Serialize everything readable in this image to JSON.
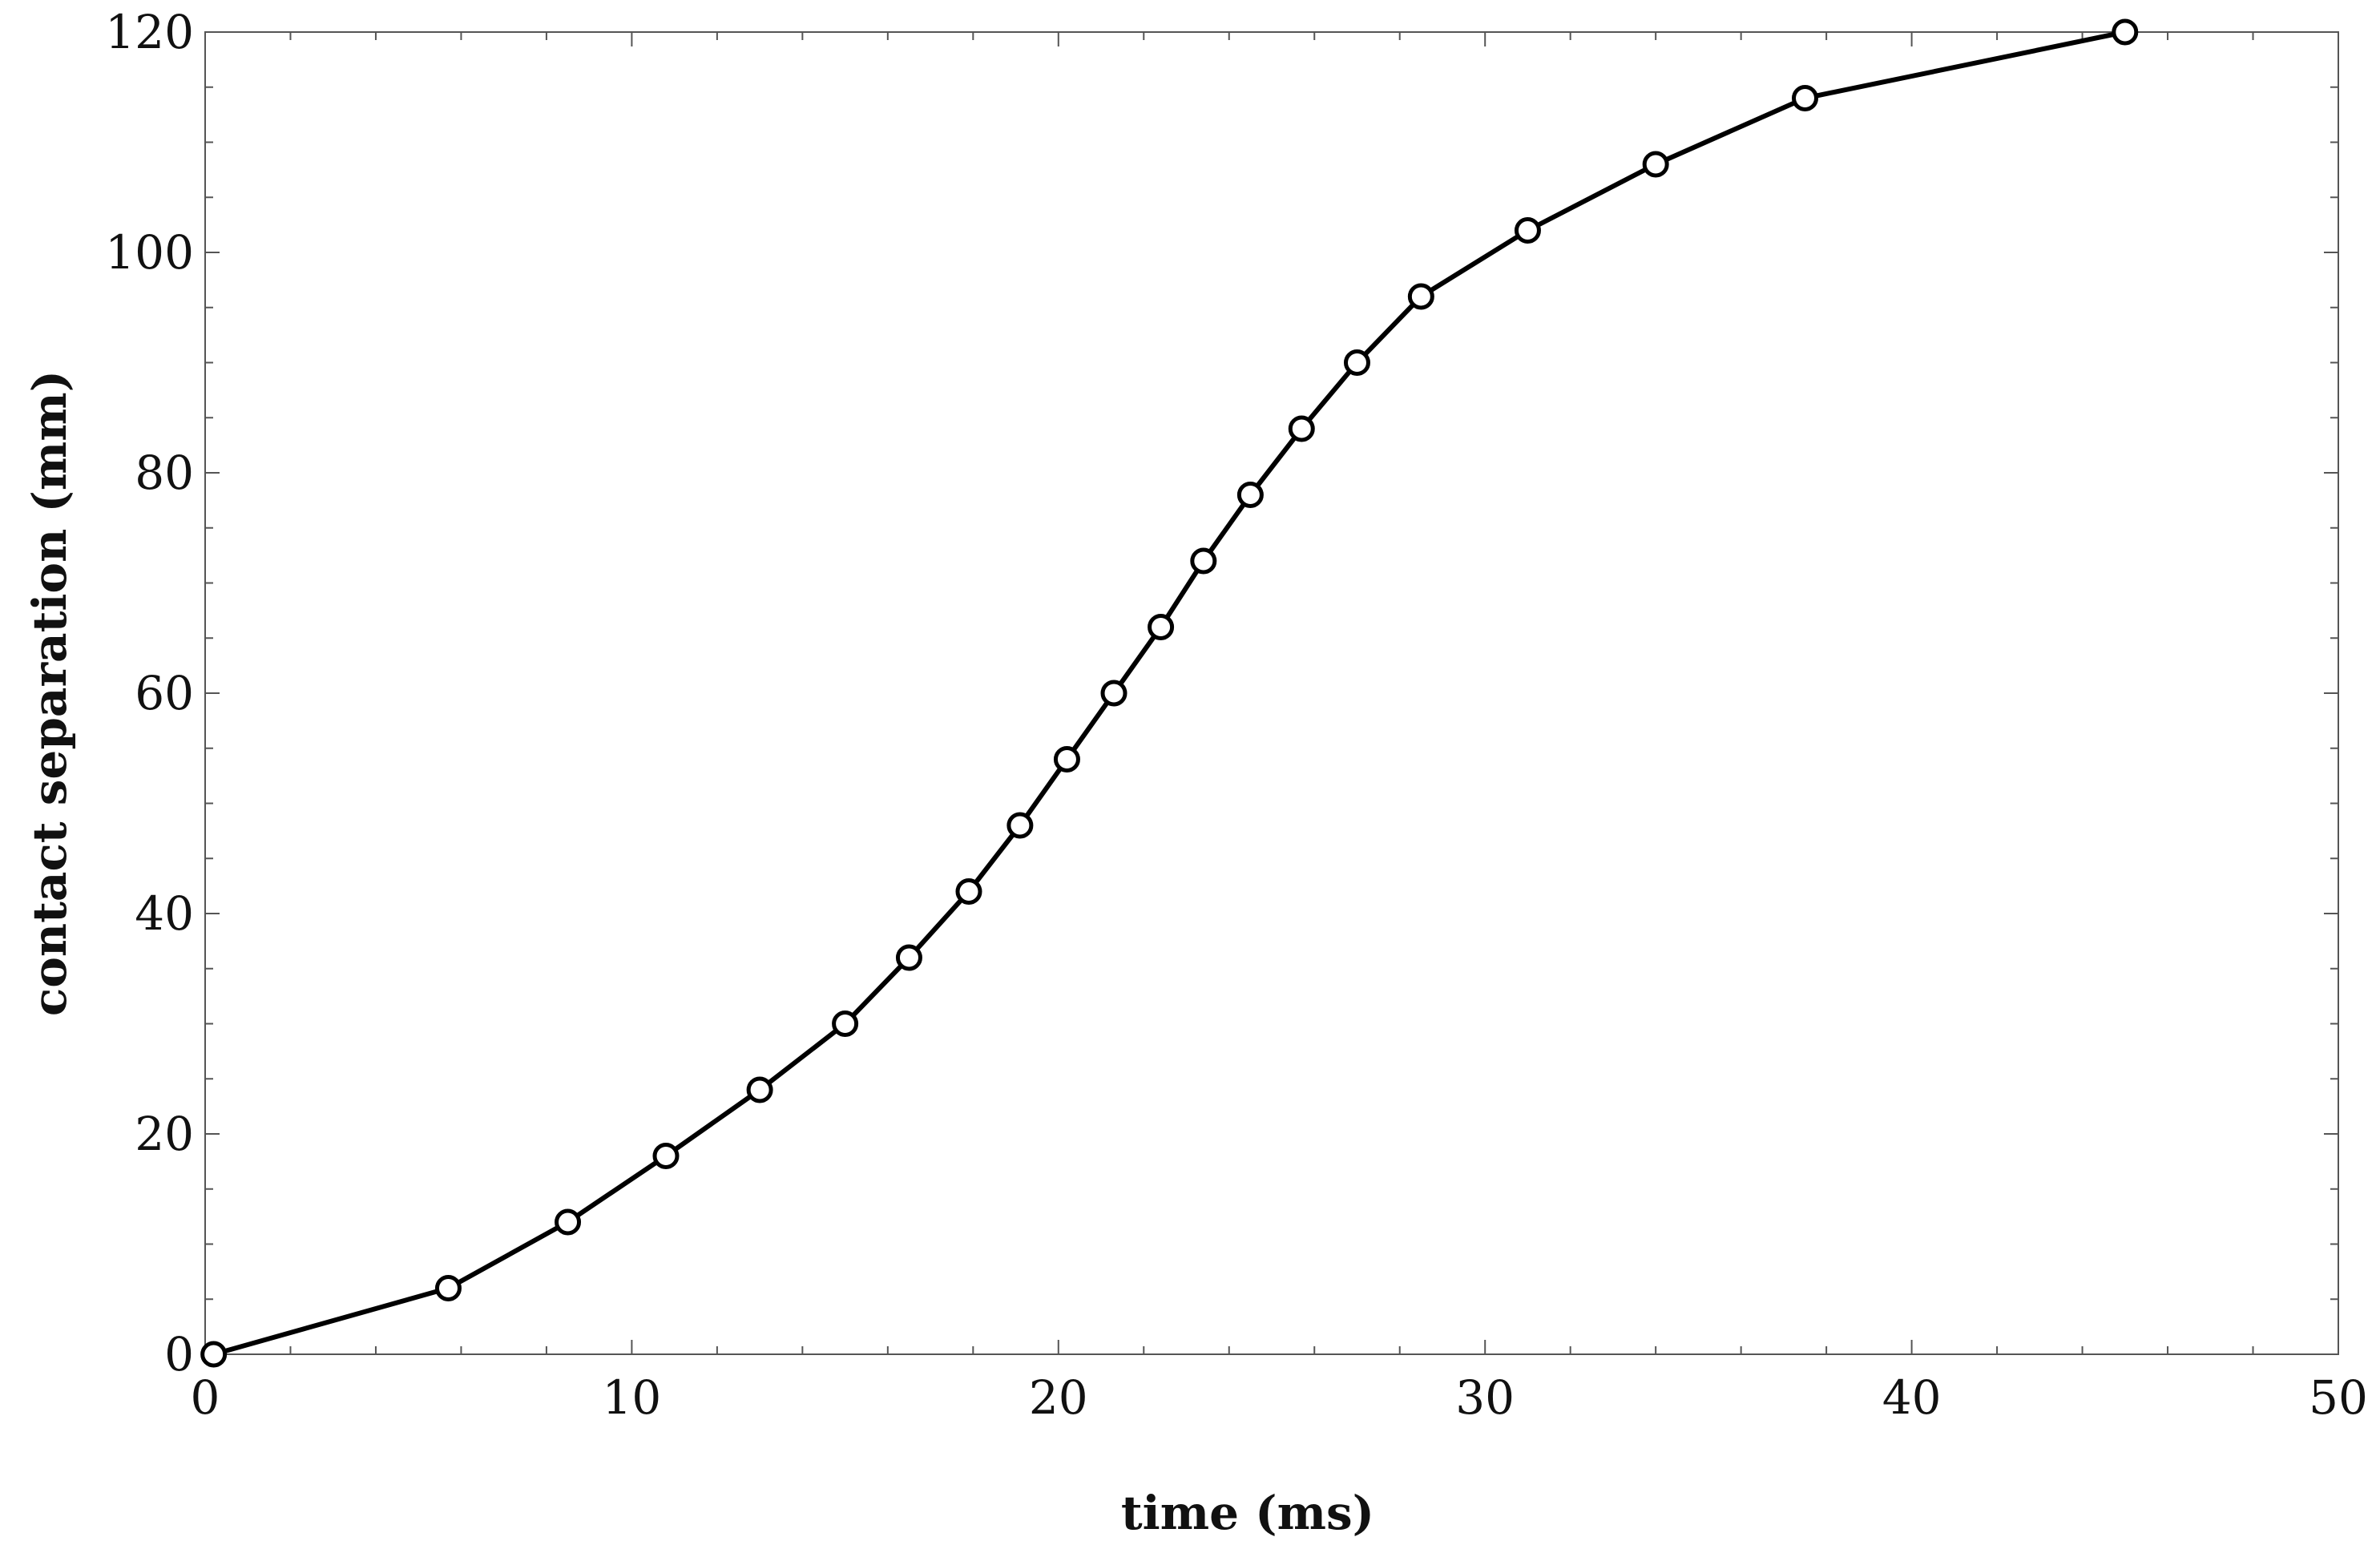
{
  "chart_data": {
    "type": "line",
    "title": "",
    "xlabel": "time (ms)",
    "ylabel": "contact separation (mm)",
    "xlim": [
      0,
      50
    ],
    "ylim": [
      0,
      120
    ],
    "x_ticks": [
      0,
      10,
      20,
      30,
      40,
      50
    ],
    "y_ticks": [
      0,
      20,
      40,
      60,
      80,
      100,
      120
    ],
    "x_minor_step": 2,
    "y_minor_step": 5,
    "grid": false,
    "marker": "open-circle",
    "line_color": "#000000",
    "series": [
      {
        "x": [
          0.2,
          5.7,
          8.5,
          10.8,
          13.0,
          15.0,
          16.5,
          17.9,
          19.1,
          20.2,
          21.3,
          22.4,
          23.4,
          24.5,
          25.7,
          27.0,
          28.5,
          31.0,
          34.0,
          37.5,
          45.0
        ],
        "y": [
          0,
          6,
          12,
          18,
          24,
          30,
          36,
          42,
          48,
          54,
          60,
          66,
          72,
          78,
          84,
          90,
          96,
          102,
          108,
          114,
          120
        ]
      }
    ]
  }
}
